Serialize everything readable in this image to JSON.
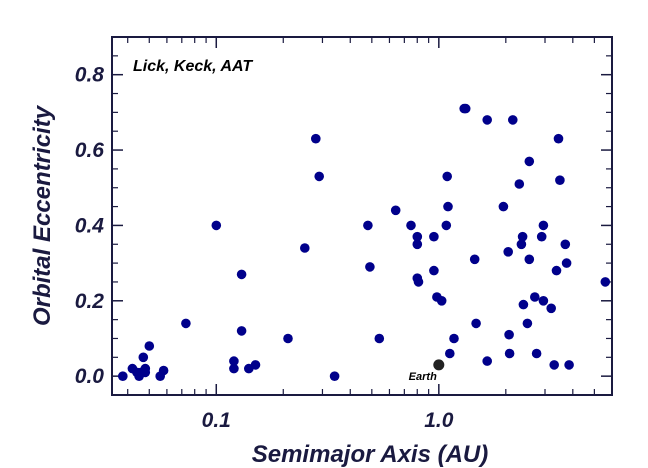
{
  "chart_data": {
    "type": "scatter",
    "title": "",
    "xlabel": "Semimajor Axis  (AU)",
    "ylabel": "Orbital Eccentricity",
    "x_scale": "log",
    "xlim": [
      0.034,
      6.0
    ],
    "ylim": [
      -0.05,
      0.9
    ],
    "x_ticks": [
      {
        "value": 0.1,
        "label": "0.1"
      },
      {
        "value": 1.0,
        "label": "1.0"
      }
    ],
    "y_ticks": [
      {
        "value": 0.0,
        "label": "0.0"
      },
      {
        "value": 0.2,
        "label": "0.2"
      },
      {
        "value": 0.4,
        "label": "0.4"
      },
      {
        "value": 0.6,
        "label": "0.6"
      },
      {
        "value": 0.8,
        "label": "0.8"
      }
    ],
    "annotation": "Lick, Keck, AAT",
    "grid": false,
    "colors": {
      "points": "#00008b",
      "earth": "#222222",
      "axes": "#1a1a40"
    },
    "series": [
      {
        "points": [
          [
            0.038,
            0.0
          ],
          [
            0.042,
            0.02
          ],
          [
            0.044,
            0.01
          ],
          [
            0.045,
            0.0
          ],
          [
            0.046,
            0.01
          ],
          [
            0.047,
            0.05
          ],
          [
            0.048,
            0.02
          ],
          [
            0.048,
            0.01
          ],
          [
            0.05,
            0.08
          ],
          [
            0.056,
            0.0
          ],
          [
            0.058,
            0.015
          ],
          [
            0.073,
            0.14
          ],
          [
            0.1,
            0.4
          ],
          [
            0.12,
            0.04
          ],
          [
            0.12,
            0.02
          ],
          [
            0.13,
            0.27
          ],
          [
            0.13,
            0.12
          ],
          [
            0.14,
            0.02
          ],
          [
            0.15,
            0.03
          ],
          [
            0.21,
            0.1
          ],
          [
            0.25,
            0.34
          ],
          [
            0.28,
            0.63
          ],
          [
            0.29,
            0.53
          ],
          [
            0.34,
            0.0
          ],
          [
            0.48,
            0.4
          ],
          [
            0.49,
            0.29
          ],
          [
            0.54,
            0.1
          ],
          [
            0.64,
            0.44
          ],
          [
            0.75,
            0.4
          ],
          [
            0.8,
            0.37
          ],
          [
            0.8,
            0.35
          ],
          [
            0.8,
            0.26
          ],
          [
            0.81,
            0.25
          ],
          [
            0.95,
            0.37
          ],
          [
            0.95,
            0.28
          ],
          [
            0.98,
            0.21
          ],
          [
            1.03,
            0.2
          ],
          [
            1.08,
            0.4
          ],
          [
            1.09,
            0.53
          ],
          [
            1.1,
            0.45
          ],
          [
            1.12,
            0.06
          ],
          [
            1.17,
            0.1
          ],
          [
            1.3,
            0.71
          ],
          [
            1.32,
            0.71
          ],
          [
            1.45,
            0.31
          ],
          [
            1.47,
            0.14
          ],
          [
            1.65,
            0.68
          ],
          [
            1.65,
            0.04
          ],
          [
            1.95,
            0.45
          ],
          [
            2.05,
            0.33
          ],
          [
            2.07,
            0.11
          ],
          [
            2.08,
            0.06
          ],
          [
            2.15,
            0.68
          ],
          [
            2.3,
            0.51
          ],
          [
            2.35,
            0.35
          ],
          [
            2.38,
            0.37
          ],
          [
            2.4,
            0.19
          ],
          [
            2.5,
            0.14
          ],
          [
            2.55,
            0.57
          ],
          [
            2.55,
            0.31
          ],
          [
            2.7,
            0.21
          ],
          [
            2.75,
            0.06
          ],
          [
            2.9,
            0.37
          ],
          [
            2.95,
            0.4
          ],
          [
            2.95,
            0.2
          ],
          [
            3.2,
            0.18
          ],
          [
            3.3,
            0.03
          ],
          [
            3.38,
            0.28
          ],
          [
            3.45,
            0.63
          ],
          [
            3.5,
            0.52
          ],
          [
            3.7,
            0.35
          ],
          [
            3.75,
            0.3
          ],
          [
            3.85,
            0.03
          ],
          [
            5.6,
            0.25
          ]
        ]
      }
    ],
    "earth": {
      "label": "Earth",
      "x": 1.0,
      "y": 0.03
    }
  }
}
